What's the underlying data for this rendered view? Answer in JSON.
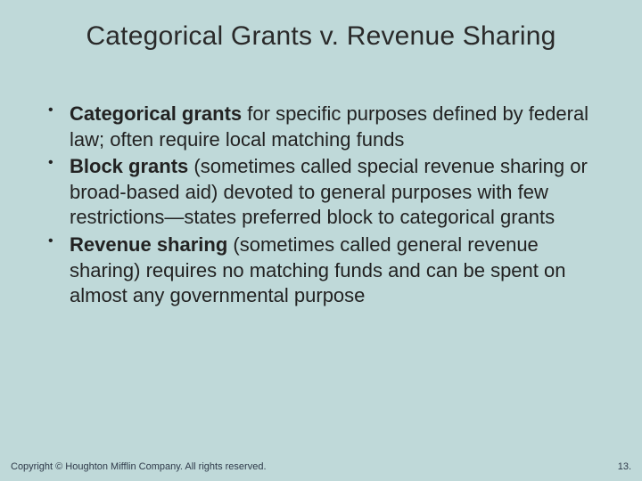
{
  "background_color": "#bfd9d9",
  "title": "Categorical Grants v. Revenue Sharing",
  "title_fontsize": 30,
  "title_color": "#2a2a2a",
  "body_fontsize": 22,
  "body_color": "#222222",
  "bullets": [
    {
      "term": "Categorical grants",
      "rest": " for specific purposes defined by federal law; often require local matching funds"
    },
    {
      "term": "Block grants",
      "rest": " (sometimes called special revenue sharing or broad-based aid) devoted to general purposes with few restrictions—states preferred block to categorical grants"
    },
    {
      "term": "Revenue sharing",
      "rest": " (sometimes called general revenue sharing) requires no matching funds and can be spent on almost any governmental purpose"
    }
  ],
  "footer": {
    "copyright": "Copyright © Houghton Mifflin Company. All rights reserved.",
    "page": "13."
  },
  "footer_fontsize": 11,
  "footer_color": "#2f3a4a"
}
